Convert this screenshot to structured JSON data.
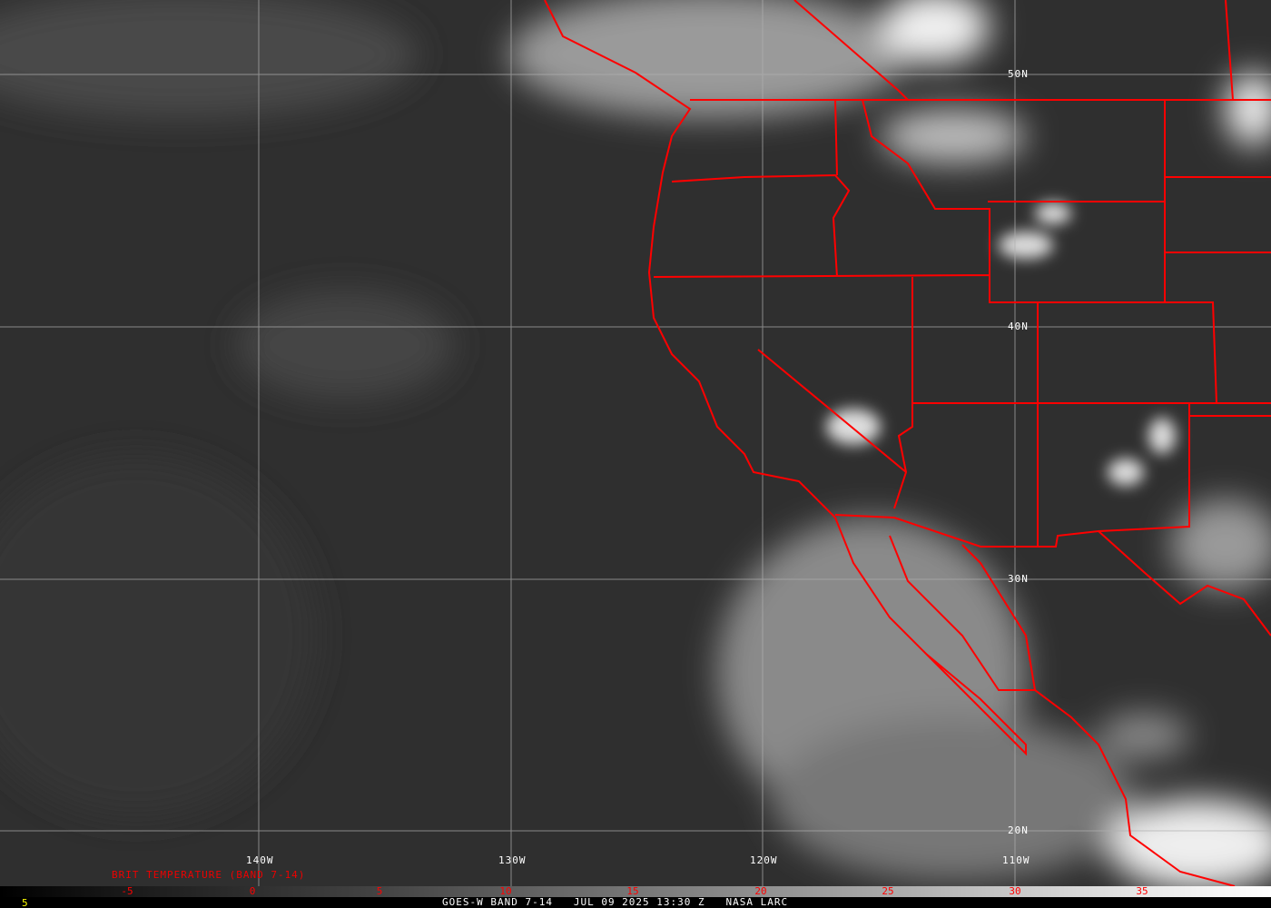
{
  "satellite": "GOES-W",
  "footer": {
    "left_value": "5",
    "caption": "GOES-W BAND 7-14   JUL 09 2025 13:30 Z   NASA LARC"
  },
  "colorbar": {
    "title": "BRIT TEMPERATURE (BAND 7-14)",
    "ticks": [
      "-5",
      "0",
      "5",
      "10",
      "15",
      "20",
      "25",
      "30",
      "35"
    ],
    "tick_color": "#ff0000"
  },
  "grid": {
    "latitudes": [
      "50N",
      "40N",
      "30N",
      "20N"
    ],
    "longitudes": [
      "140W",
      "130W",
      "120W",
      "110W"
    ]
  },
  "colors": {
    "borders": "#ff0000",
    "grid": "#b0b0b0",
    "labels": "#ffffff",
    "footer_value": "#ffff00"
  }
}
